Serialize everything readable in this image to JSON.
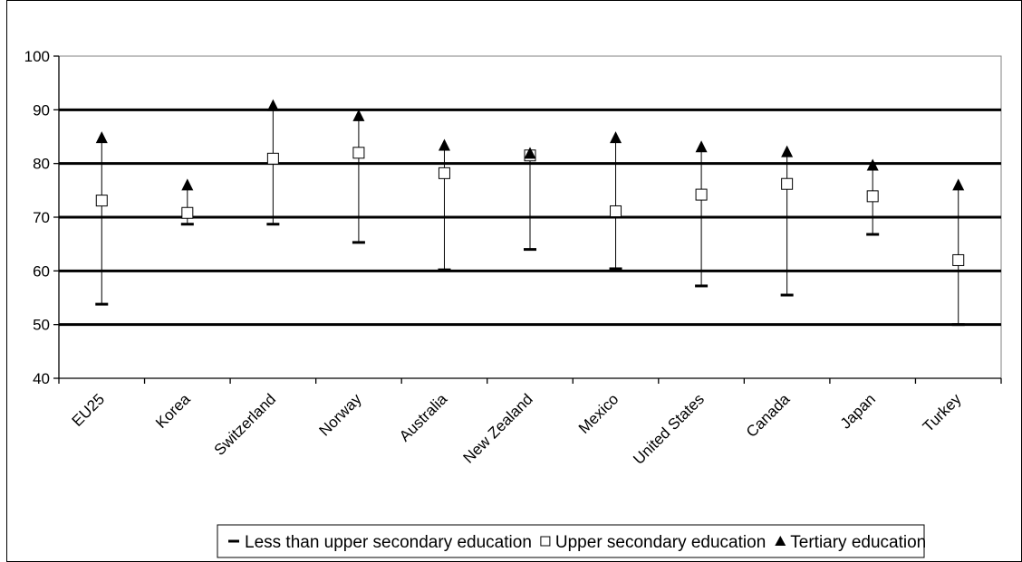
{
  "chart_data": {
    "type": "scatter",
    "title": "",
    "xlabel": "",
    "ylabel": "",
    "ylim": [
      40,
      100
    ],
    "yticks": [
      40,
      50,
      60,
      70,
      80,
      90,
      100
    ],
    "ytick_labels": [
      "40",
      "50",
      "60",
      "70",
      "80",
      "90",
      "100"
    ],
    "grid": true,
    "legend_position": "bottom",
    "categories": [
      "EU25",
      "Korea",
      "Switzerland",
      "Norway",
      "Australia",
      "New Zealand",
      "Mexico",
      "United States",
      "Canada",
      "Japan",
      "Turkey"
    ],
    "series": [
      {
        "name": "Less than upper secondary education",
        "marker": "dash",
        "values": [
          53.8,
          68.7,
          68.7,
          65.3,
          60.2,
          64.0,
          60.4,
          57.2,
          55.5,
          66.8,
          50.0
        ]
      },
      {
        "name": "Upper secondary education",
        "marker": "square",
        "values": [
          73.1,
          70.8,
          80.9,
          82.0,
          78.2,
          81.5,
          71.1,
          74.2,
          76.2,
          73.9,
          62.0
        ]
      },
      {
        "name": "Tertiary education",
        "marker": "triangle",
        "values": [
          84.8,
          76.0,
          90.8,
          88.9,
          83.4,
          81.9,
          84.8,
          83.1,
          82.2,
          79.7,
          76.0
        ]
      }
    ],
    "colors": {
      "marker": "#000000",
      "marker_fill_square": "#ffffff",
      "gridline": "#000000",
      "axis": "#808080"
    }
  }
}
